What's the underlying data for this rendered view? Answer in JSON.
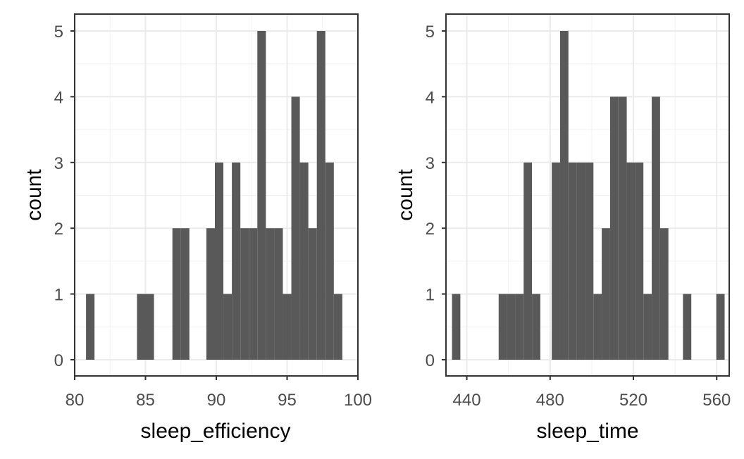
{
  "chart_data": [
    {
      "type": "bar",
      "xlabel": "sleep_efficiency",
      "ylabel": "count",
      "xlim": [
        80,
        100
      ],
      "ylim": [
        0,
        5
      ],
      "bar_color": "#595959",
      "grid": true,
      "x_ticks": [
        "80",
        "85",
        "90",
        "95",
        "100"
      ],
      "y_ticks": [
        "0",
        "1",
        "2",
        "3",
        "4",
        "5"
      ],
      "bins": [
        {
          "x0": 80.8,
          "x1": 81.4,
          "count": 1
        },
        {
          "x0": 84.4,
          "x1": 85.0,
          "count": 1
        },
        {
          "x0": 85.0,
          "x1": 85.6,
          "count": 1
        },
        {
          "x0": 86.9,
          "x1": 87.5,
          "count": 2
        },
        {
          "x0": 87.5,
          "x1": 88.1,
          "count": 2
        },
        {
          "x0": 89.3,
          "x1": 89.9,
          "count": 2
        },
        {
          "x0": 89.9,
          "x1": 90.5,
          "count": 3
        },
        {
          "x0": 90.5,
          "x1": 91.1,
          "count": 1
        },
        {
          "x0": 91.1,
          "x1": 91.7,
          "count": 3
        },
        {
          "x0": 91.7,
          "x1": 92.3,
          "count": 2
        },
        {
          "x0": 92.3,
          "x1": 92.9,
          "count": 2
        },
        {
          "x0": 92.9,
          "x1": 93.5,
          "count": 5
        },
        {
          "x0": 93.5,
          "x1": 94.1,
          "count": 2
        },
        {
          "x0": 94.1,
          "x1": 94.7,
          "count": 2
        },
        {
          "x0": 94.7,
          "x1": 95.3,
          "count": 1
        },
        {
          "x0": 95.3,
          "x1": 95.9,
          "count": 4
        },
        {
          "x0": 95.9,
          "x1": 96.5,
          "count": 3
        },
        {
          "x0": 96.5,
          "x1": 97.1,
          "count": 2
        },
        {
          "x0": 97.1,
          "x1": 97.7,
          "count": 5
        },
        {
          "x0": 97.7,
          "x1": 98.3,
          "count": 3
        },
        {
          "x0": 98.3,
          "x1": 98.9,
          "count": 1
        }
      ]
    },
    {
      "type": "bar",
      "xlabel": "sleep_time",
      "ylabel": "count",
      "xlim": [
        430,
        566
      ],
      "ylim": [
        0,
        5
      ],
      "bar_color": "#595959",
      "grid": true,
      "x_ticks": [
        "440",
        "480",
        "520",
        "560"
      ],
      "y_ticks": [
        "0",
        "1",
        "2",
        "3",
        "4",
        "5"
      ],
      "bins": [
        {
          "x0": 432.9,
          "x1": 436.9,
          "count": 1
        },
        {
          "x0": 455.3,
          "x1": 459.3,
          "count": 1
        },
        {
          "x0": 459.3,
          "x1": 463.3,
          "count": 1
        },
        {
          "x0": 463.3,
          "x1": 467.3,
          "count": 1
        },
        {
          "x0": 467.3,
          "x1": 471.3,
          "count": 3
        },
        {
          "x0": 471.3,
          "x1": 475.3,
          "count": 1
        },
        {
          "x0": 480.8,
          "x1": 484.8,
          "count": 3
        },
        {
          "x0": 484.8,
          "x1": 488.8,
          "count": 5
        },
        {
          "x0": 488.8,
          "x1": 492.8,
          "count": 3
        },
        {
          "x0": 492.8,
          "x1": 496.8,
          "count": 3
        },
        {
          "x0": 496.8,
          "x1": 500.8,
          "count": 3
        },
        {
          "x0": 500.8,
          "x1": 504.8,
          "count": 1
        },
        {
          "x0": 504.8,
          "x1": 508.8,
          "count": 2
        },
        {
          "x0": 508.8,
          "x1": 512.8,
          "count": 4
        },
        {
          "x0": 512.8,
          "x1": 516.8,
          "count": 4
        },
        {
          "x0": 516.8,
          "x1": 520.8,
          "count": 3
        },
        {
          "x0": 520.8,
          "x1": 524.8,
          "count": 3
        },
        {
          "x0": 524.8,
          "x1": 528.8,
          "count": 1
        },
        {
          "x0": 528.8,
          "x1": 532.8,
          "count": 4
        },
        {
          "x0": 532.8,
          "x1": 536.8,
          "count": 2
        },
        {
          "x0": 543.8,
          "x1": 547.8,
          "count": 1
        },
        {
          "x0": 559.8,
          "x1": 563.8,
          "count": 1
        }
      ]
    }
  ]
}
